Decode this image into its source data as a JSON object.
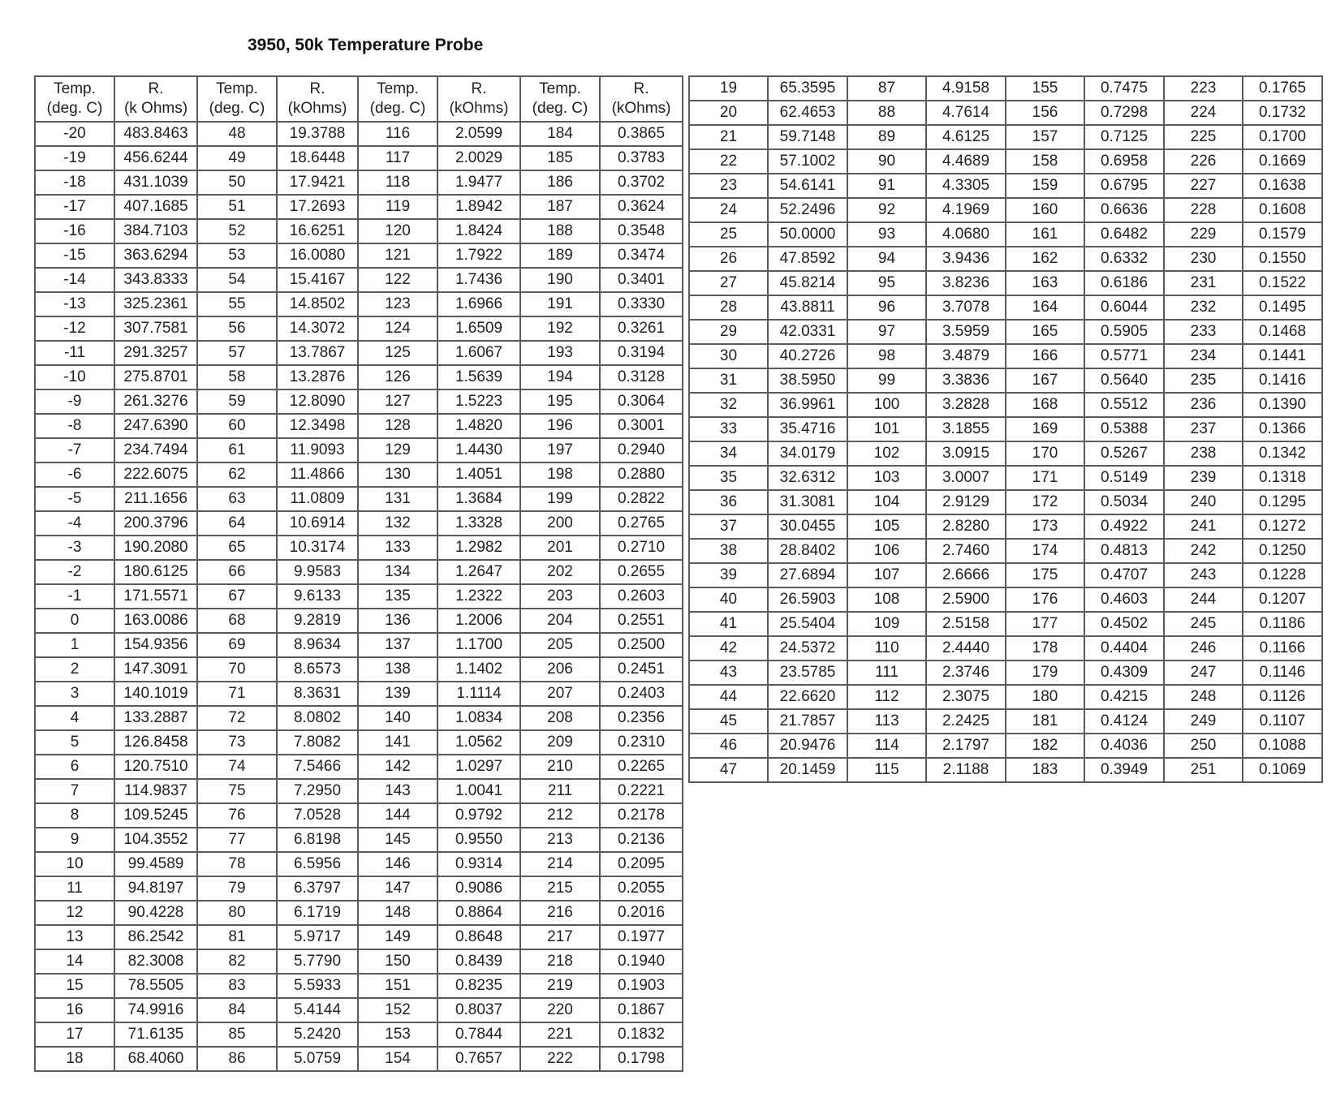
{
  "title": "3950, 50k Temperature Probe",
  "left_table": {
    "headers": [
      [
        "Temp.",
        "(deg. C)"
      ],
      [
        "R.",
        "(k Ohms)"
      ],
      [
        "Temp.",
        "(deg. C)"
      ],
      [
        "R.",
        "(kOhms)"
      ],
      [
        "Temp.",
        "(deg. C)"
      ],
      [
        "R.",
        "(kOhms)"
      ],
      [
        "Temp.",
        "(deg. C)"
      ],
      [
        "R.",
        "(kOhms)"
      ]
    ],
    "rows": [
      [
        "-20",
        "483.8463",
        "48",
        "19.3788",
        "116",
        "2.0599",
        "184",
        "0.3865"
      ],
      [
        "-19",
        "456.6244",
        "49",
        "18.6448",
        "117",
        "2.0029",
        "185",
        "0.3783"
      ],
      [
        "-18",
        "431.1039",
        "50",
        "17.9421",
        "118",
        "1.9477",
        "186",
        "0.3702"
      ],
      [
        "-17",
        "407.1685",
        "51",
        "17.2693",
        "119",
        "1.8942",
        "187",
        "0.3624"
      ],
      [
        "-16",
        "384.7103",
        "52",
        "16.6251",
        "120",
        "1.8424",
        "188",
        "0.3548"
      ],
      [
        "-15",
        "363.6294",
        "53",
        "16.0080",
        "121",
        "1.7922",
        "189",
        "0.3474"
      ],
      [
        "-14",
        "343.8333",
        "54",
        "15.4167",
        "122",
        "1.7436",
        "190",
        "0.3401"
      ],
      [
        "-13",
        "325.2361",
        "55",
        "14.8502",
        "123",
        "1.6966",
        "191",
        "0.3330"
      ],
      [
        "-12",
        "307.7581",
        "56",
        "14.3072",
        "124",
        "1.6509",
        "192",
        "0.3261"
      ],
      [
        "-11",
        "291.3257",
        "57",
        "13.7867",
        "125",
        "1.6067",
        "193",
        "0.3194"
      ],
      [
        "-10",
        "275.8701",
        "58",
        "13.2876",
        "126",
        "1.5639",
        "194",
        "0.3128"
      ],
      [
        "-9",
        "261.3276",
        "59",
        "12.8090",
        "127",
        "1.5223",
        "195",
        "0.3064"
      ],
      [
        "-8",
        "247.6390",
        "60",
        "12.3498",
        "128",
        "1.4820",
        "196",
        "0.3001"
      ],
      [
        "-7",
        "234.7494",
        "61",
        "11.9093",
        "129",
        "1.4430",
        "197",
        "0.2940"
      ],
      [
        "-6",
        "222.6075",
        "62",
        "11.4866",
        "130",
        "1.4051",
        "198",
        "0.2880"
      ],
      [
        "-5",
        "211.1656",
        "63",
        "11.0809",
        "131",
        "1.3684",
        "199",
        "0.2822"
      ],
      [
        "-4",
        "200.3796",
        "64",
        "10.6914",
        "132",
        "1.3328",
        "200",
        "0.2765"
      ],
      [
        "-3",
        "190.2080",
        "65",
        "10.3174",
        "133",
        "1.2982",
        "201",
        "0.2710"
      ],
      [
        "-2",
        "180.6125",
        "66",
        "9.9583",
        "134",
        "1.2647",
        "202",
        "0.2655"
      ],
      [
        "-1",
        "171.5571",
        "67",
        "9.6133",
        "135",
        "1.2322",
        "203",
        "0.2603"
      ],
      [
        "0",
        "163.0086",
        "68",
        "9.2819",
        "136",
        "1.2006",
        "204",
        "0.2551"
      ],
      [
        "1",
        "154.9356",
        "69",
        "8.9634",
        "137",
        "1.1700",
        "205",
        "0.2500"
      ],
      [
        "2",
        "147.3091",
        "70",
        "8.6573",
        "138",
        "1.1402",
        "206",
        "0.2451"
      ],
      [
        "3",
        "140.1019",
        "71",
        "8.3631",
        "139",
        "1.1114",
        "207",
        "0.2403"
      ],
      [
        "4",
        "133.2887",
        "72",
        "8.0802",
        "140",
        "1.0834",
        "208",
        "0.2356"
      ],
      [
        "5",
        "126.8458",
        "73",
        "7.8082",
        "141",
        "1.0562",
        "209",
        "0.2310"
      ],
      [
        "6",
        "120.7510",
        "74",
        "7.5466",
        "142",
        "1.0297",
        "210",
        "0.2265"
      ],
      [
        "7",
        "114.9837",
        "75",
        "7.2950",
        "143",
        "1.0041",
        "211",
        "0.2221"
      ],
      [
        "8",
        "109.5245",
        "76",
        "7.0528",
        "144",
        "0.9792",
        "212",
        "0.2178"
      ],
      [
        "9",
        "104.3552",
        "77",
        "6.8198",
        "145",
        "0.9550",
        "213",
        "0.2136"
      ],
      [
        "10",
        "99.4589",
        "78",
        "6.5956",
        "146",
        "0.9314",
        "214",
        "0.2095"
      ],
      [
        "11",
        "94.8197",
        "79",
        "6.3797",
        "147",
        "0.9086",
        "215",
        "0.2055"
      ],
      [
        "12",
        "90.4228",
        "80",
        "6.1719",
        "148",
        "0.8864",
        "216",
        "0.2016"
      ],
      [
        "13",
        "86.2542",
        "81",
        "5.9717",
        "149",
        "0.8648",
        "217",
        "0.1977"
      ],
      [
        "14",
        "82.3008",
        "82",
        "5.7790",
        "150",
        "0.8439",
        "218",
        "0.1940"
      ],
      [
        "15",
        "78.5505",
        "83",
        "5.5933",
        "151",
        "0.8235",
        "219",
        "0.1903"
      ],
      [
        "16",
        "74.9916",
        "84",
        "5.4144",
        "152",
        "0.8037",
        "220",
        "0.1867"
      ],
      [
        "17",
        "71.6135",
        "85",
        "5.2420",
        "153",
        "0.7844",
        "221",
        "0.1832"
      ],
      [
        "18",
        "68.4060",
        "86",
        "5.0759",
        "154",
        "0.7657",
        "222",
        "0.1798"
      ]
    ]
  },
  "right_table": {
    "rows": [
      [
        "19",
        "65.3595",
        "87",
        "4.9158",
        "155",
        "0.7475",
        "223",
        "0.1765"
      ],
      [
        "20",
        "62.4653",
        "88",
        "4.7614",
        "156",
        "0.7298",
        "224",
        "0.1732"
      ],
      [
        "21",
        "59.7148",
        "89",
        "4.6125",
        "157",
        "0.7125",
        "225",
        "0.1700"
      ],
      [
        "22",
        "57.1002",
        "90",
        "4.4689",
        "158",
        "0.6958",
        "226",
        "0.1669"
      ],
      [
        "23",
        "54.6141",
        "91",
        "4.3305",
        "159",
        "0.6795",
        "227",
        "0.1638"
      ],
      [
        "24",
        "52.2496",
        "92",
        "4.1969",
        "160",
        "0.6636",
        "228",
        "0.1608"
      ],
      [
        "25",
        "50.0000",
        "93",
        "4.0680",
        "161",
        "0.6482",
        "229",
        "0.1579"
      ],
      [
        "26",
        "47.8592",
        "94",
        "3.9436",
        "162",
        "0.6332",
        "230",
        "0.1550"
      ],
      [
        "27",
        "45.8214",
        "95",
        "3.8236",
        "163",
        "0.6186",
        "231",
        "0.1522"
      ],
      [
        "28",
        "43.8811",
        "96",
        "3.7078",
        "164",
        "0.6044",
        "232",
        "0.1495"
      ],
      [
        "29",
        "42.0331",
        "97",
        "3.5959",
        "165",
        "0.5905",
        "233",
        "0.1468"
      ],
      [
        "30",
        "40.2726",
        "98",
        "3.4879",
        "166",
        "0.5771",
        "234",
        "0.1441"
      ],
      [
        "31",
        "38.5950",
        "99",
        "3.3836",
        "167",
        "0.5640",
        "235",
        "0.1416"
      ],
      [
        "32",
        "36.9961",
        "100",
        "3.2828",
        "168",
        "0.5512",
        "236",
        "0.1390"
      ],
      [
        "33",
        "35.4716",
        "101",
        "3.1855",
        "169",
        "0.5388",
        "237",
        "0.1366"
      ],
      [
        "34",
        "34.0179",
        "102",
        "3.0915",
        "170",
        "0.5267",
        "238",
        "0.1342"
      ],
      [
        "35",
        "32.6312",
        "103",
        "3.0007",
        "171",
        "0.5149",
        "239",
        "0.1318"
      ],
      [
        "36",
        "31.3081",
        "104",
        "2.9129",
        "172",
        "0.5034",
        "240",
        "0.1295"
      ],
      [
        "37",
        "30.0455",
        "105",
        "2.8280",
        "173",
        "0.4922",
        "241",
        "0.1272"
      ],
      [
        "38",
        "28.8402",
        "106",
        "2.7460",
        "174",
        "0.4813",
        "242",
        "0.1250"
      ],
      [
        "39",
        "27.6894",
        "107",
        "2.6666",
        "175",
        "0.4707",
        "243",
        "0.1228"
      ],
      [
        "40",
        "26.5903",
        "108",
        "2.5900",
        "176",
        "0.4603",
        "244",
        "0.1207"
      ],
      [
        "41",
        "25.5404",
        "109",
        "2.5158",
        "177",
        "0.4502",
        "245",
        "0.1186"
      ],
      [
        "42",
        "24.5372",
        "110",
        "2.4440",
        "178",
        "0.4404",
        "246",
        "0.1166"
      ],
      [
        "43",
        "23.5785",
        "111",
        "2.3746",
        "179",
        "0.4309",
        "247",
        "0.1146"
      ],
      [
        "44",
        "22.6620",
        "112",
        "2.3075",
        "180",
        "0.4215",
        "248",
        "0.1126"
      ],
      [
        "45",
        "21.7857",
        "113",
        "2.2425",
        "181",
        "0.4124",
        "249",
        "0.1107"
      ],
      [
        "46",
        "20.9476",
        "114",
        "2.1797",
        "182",
        "0.4036",
        "250",
        "0.1088"
      ],
      [
        "47",
        "20.1459",
        "115",
        "2.1188",
        "183",
        "0.3949",
        "251",
        "0.1069"
      ]
    ]
  }
}
